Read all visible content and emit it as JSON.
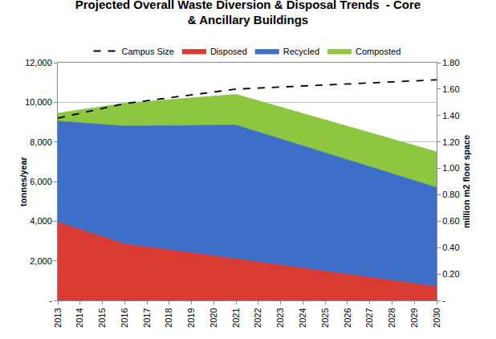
{
  "chart_data": {
    "type": "area",
    "title": "Projected Overall Waste Diversion & Disposal Trends  - Core & Ancillary Buildings",
    "y_label": "tonnes/year",
    "y2_label": "million m2 floor space",
    "stacked": true,
    "grid": true,
    "legend": "top",
    "x": [
      2013,
      2016,
      2021,
      2030
    ],
    "xlim": [
      2013,
      2030
    ],
    "xticks": [
      2013,
      2014,
      2015,
      2016,
      2017,
      2018,
      2019,
      2020,
      2021,
      2022,
      2023,
      2024,
      2025,
      2026,
      2027,
      2028,
      2029,
      2030
    ],
    "ylim": [
      0,
      12000
    ],
    "yticks": [
      {
        "value": 0,
        "label": "-"
      },
      {
        "value": 2000,
        "label": "2,000"
      },
      {
        "value": 4000,
        "label": "4,000"
      },
      {
        "value": 6000,
        "label": "6,000"
      },
      {
        "value": 8000,
        "label": "8,000"
      },
      {
        "value": 10000,
        "label": "10,000"
      },
      {
        "value": 12000,
        "label": "12,000"
      }
    ],
    "y2lim": [
      0,
      1.8
    ],
    "y2ticks": [
      {
        "value": 0,
        "label": "-"
      },
      {
        "value": 0.2,
        "label": "0.20"
      },
      {
        "value": 0.4,
        "label": "0.40"
      },
      {
        "value": 0.6,
        "label": "0.60"
      },
      {
        "value": 0.8,
        "label": "0.80"
      },
      {
        "value": 1.0,
        "label": "1.00"
      },
      {
        "value": 1.2,
        "label": "1.20"
      },
      {
        "value": 1.4,
        "label": "1.40"
      },
      {
        "value": 1.6,
        "label": "1.60"
      },
      {
        "value": 1.8,
        "label": "1.80"
      }
    ],
    "series": [
      {
        "name": "Composted",
        "type": "area",
        "color": "#8dc63f",
        "values": [
          400,
          1150,
          1550,
          1800
        ]
      },
      {
        "name": "Recycled",
        "type": "area",
        "color": "#3d6fc8",
        "values": [
          5100,
          5950,
          6750,
          5000
        ]
      },
      {
        "name": "Disposed",
        "type": "area",
        "color": "#d93a32",
        "values": [
          3950,
          2850,
          2100,
          700
        ]
      },
      {
        "name": "Campus Size",
        "type": "line",
        "axis": "y2",
        "color": "#000000",
        "line_style": "dashed",
        "values": [
          1.38,
          1.49,
          1.6,
          1.67
        ]
      }
    ]
  }
}
